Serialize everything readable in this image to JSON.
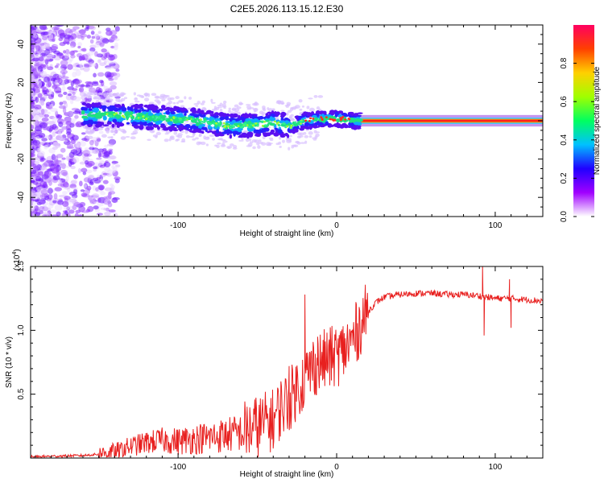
{
  "title": "C2E5.2026.113.15.12.E30",
  "chart_data": [
    {
      "type": "heatmap",
      "name": "spectrogram",
      "xlabel": "Height of straight line (km)",
      "ylabel": "Frequency (Hz)",
      "xlim": [
        -193,
        130
      ],
      "ylim": [
        -50,
        50
      ],
      "xticks": [
        -100,
        0,
        100
      ],
      "yticks": [
        -40,
        -20,
        0,
        20,
        40
      ],
      "colorbar": {
        "label": "Normalized spectral amplitude",
        "range": [
          0,
          1
        ],
        "ticks": [
          "0.0",
          "0.2",
          "0.4",
          "0.6",
          "0.8"
        ],
        "colors": [
          "#ffffff",
          "#a000ff",
          "#2000ff",
          "#00c0ff",
          "#00ff60",
          "#a0ff00",
          "#ffd000",
          "#ff4000",
          "#ff0060"
        ]
      },
      "ridge": {
        "x": [
          -155,
          -140,
          -120,
          -100,
          -80,
          -65,
          -50,
          -40,
          -30,
          -20,
          -10,
          0,
          5,
          10,
          50,
          100,
          130
        ],
        "freq": [
          3,
          3,
          2,
          1,
          -1,
          -3,
          -2,
          -1,
          -3,
          0,
          1,
          1,
          1,
          0,
          0,
          0,
          0
        ]
      }
    },
    {
      "type": "line",
      "name": "snr",
      "xlabel": "Height of straight line (km)",
      "ylabel": "SNR (10 * v/v)",
      "multiplier": "(x10",
      "multiplier_exp": "4",
      "multiplier_close": ")",
      "xlim": [
        -193,
        130
      ],
      "ylim": [
        0,
        1.5
      ],
      "xticks": [
        -100,
        0,
        100
      ],
      "yticks": [
        "0.5",
        "1.0",
        "1.5"
      ],
      "color": "#e8201f",
      "x": [
        -193,
        -160,
        -150,
        -140,
        -130,
        -120,
        -110,
        -100,
        -90,
        -80,
        -70,
        -60,
        -50,
        -40,
        -35,
        -30,
        -25,
        -20,
        -15,
        -10,
        -5,
        0,
        5,
        10,
        15,
        20,
        25,
        30,
        40,
        50,
        60,
        70,
        80,
        90,
        95,
        100,
        110,
        120,
        130
      ],
      "y": [
        0.01,
        0.02,
        0.03,
        0.05,
        0.09,
        0.12,
        0.14,
        0.13,
        0.15,
        0.16,
        0.18,
        0.2,
        0.25,
        0.3,
        0.4,
        0.45,
        0.55,
        0.62,
        0.72,
        0.75,
        0.78,
        0.8,
        0.85,
        0.92,
        1.05,
        1.15,
        1.22,
        1.26,
        1.28,
        1.29,
        1.29,
        1.28,
        1.28,
        1.27,
        1.26,
        1.25,
        1.25,
        1.24,
        1.23
      ],
      "spikes": [
        {
          "x": -30,
          "y": 0.72
        },
        {
          "x": -20,
          "y": 1.28
        },
        {
          "x": -12,
          "y": 0.95
        },
        {
          "x": 92,
          "y": 1.5
        },
        {
          "x": 93,
          "y": 0.96
        },
        {
          "x": 109,
          "y": 1.4
        },
        {
          "x": 110,
          "y": 1.02
        }
      ]
    }
  ]
}
